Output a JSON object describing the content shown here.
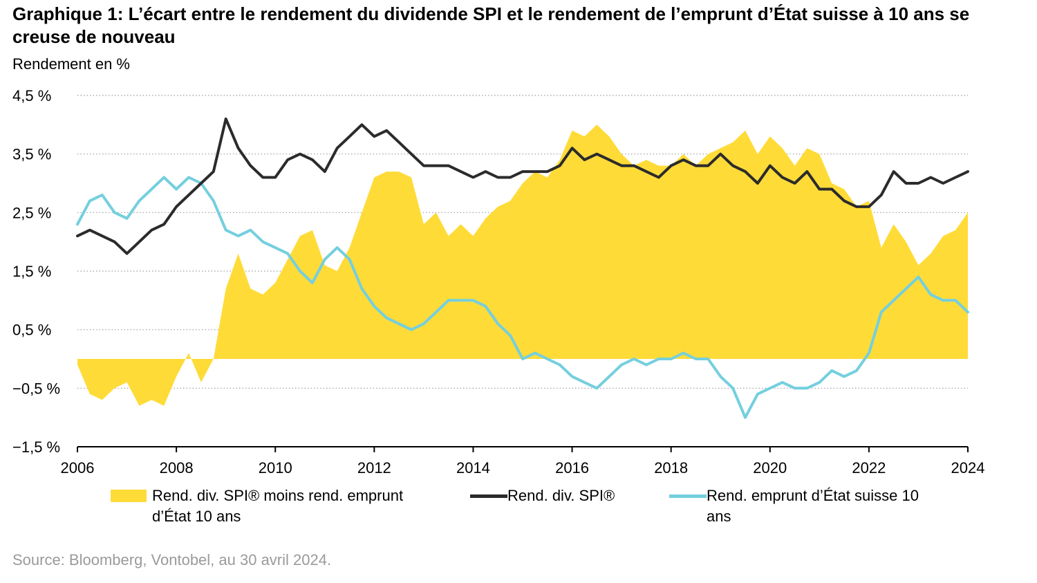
{
  "title": "Graphique 1: L’écart entre le rendement du dividende SPI et le rendement de l’emprunt d’État suisse à 10 ans se creuse de nouveau",
  "source": "Source: Bloomberg, Vontobel, au 30 avril 2024.",
  "colors": {
    "spread": "#FFDB38",
    "spi": "#2B2B2B",
    "bond": "#74CFDE"
  },
  "chart_data": {
    "type": "line",
    "title": "Graphique 1: L’écart entre le rendement du dividende SPI et le rendement de l’emprunt d’État suisse à 10 ans se creuse de nouveau",
    "ylabel": "Rendement en %",
    "xlabel": "",
    "ylim": [
      -1.5,
      4.5
    ],
    "xlim": [
      2006,
      2024
    ],
    "grid": "horizontal dotted",
    "legend_position": "bottom",
    "y_ticks": [
      {
        "value": 4.5,
        "label": "4,5 %"
      },
      {
        "value": 3.5,
        "label": "3,5 %"
      },
      {
        "value": 2.5,
        "label": "2,5 %"
      },
      {
        "value": 1.5,
        "label": "1,5 %"
      },
      {
        "value": 0.5,
        "label": "0,5 %"
      },
      {
        "value": -0.5,
        "label": "−0,5 %"
      },
      {
        "value": -1.5,
        "label": "−1,5 %"
      }
    ],
    "x_ticks": [
      "2006",
      "2008",
      "2010",
      "2012",
      "2014",
      "2016",
      "2018",
      "2020",
      "2022",
      "2024"
    ],
    "series": [
      {
        "name": "Rend. div. SPI® moins rend. emprunt d’État 10 ans",
        "kind": "area",
        "points": [
          [
            2006.0,
            -0.1
          ],
          [
            2006.25,
            -0.6
          ],
          [
            2006.5,
            -0.7
          ],
          [
            2006.75,
            -0.5
          ],
          [
            2007.0,
            -0.4
          ],
          [
            2007.25,
            -0.8
          ],
          [
            2007.5,
            -0.7
          ],
          [
            2007.75,
            -0.8
          ],
          [
            2008.0,
            -0.3
          ],
          [
            2008.25,
            0.1
          ],
          [
            2008.5,
            -0.4
          ],
          [
            2008.75,
            0.0
          ],
          [
            2009.0,
            1.2
          ],
          [
            2009.25,
            1.8
          ],
          [
            2009.5,
            1.2
          ],
          [
            2009.75,
            1.1
          ],
          [
            2010.0,
            1.3
          ],
          [
            2010.25,
            1.7
          ],
          [
            2010.5,
            2.1
          ],
          [
            2010.75,
            2.2
          ],
          [
            2011.0,
            1.6
          ],
          [
            2011.25,
            1.5
          ],
          [
            2011.5,
            1.9
          ],
          [
            2011.75,
            2.5
          ],
          [
            2012.0,
            3.1
          ],
          [
            2012.25,
            3.2
          ],
          [
            2012.5,
            3.2
          ],
          [
            2012.75,
            3.1
          ],
          [
            2013.0,
            2.3
          ],
          [
            2013.25,
            2.5
          ],
          [
            2013.5,
            2.1
          ],
          [
            2013.75,
            2.3
          ],
          [
            2014.0,
            2.1
          ],
          [
            2014.25,
            2.4
          ],
          [
            2014.5,
            2.6
          ],
          [
            2014.75,
            2.7
          ],
          [
            2015.0,
            3.0
          ],
          [
            2015.25,
            3.2
          ],
          [
            2015.5,
            3.1
          ],
          [
            2015.75,
            3.4
          ],
          [
            2016.0,
            3.9
          ],
          [
            2016.25,
            3.8
          ],
          [
            2016.5,
            4.0
          ],
          [
            2016.75,
            3.8
          ],
          [
            2017.0,
            3.5
          ],
          [
            2017.25,
            3.3
          ],
          [
            2017.5,
            3.4
          ],
          [
            2017.75,
            3.3
          ],
          [
            2018.0,
            3.3
          ],
          [
            2018.25,
            3.5
          ],
          [
            2018.5,
            3.3
          ],
          [
            2018.75,
            3.5
          ],
          [
            2019.0,
            3.6
          ],
          [
            2019.25,
            3.7
          ],
          [
            2019.5,
            3.9
          ],
          [
            2019.75,
            3.5
          ],
          [
            2020.0,
            3.8
          ],
          [
            2020.25,
            3.6
          ],
          [
            2020.5,
            3.3
          ],
          [
            2020.75,
            3.6
          ],
          [
            2021.0,
            3.5
          ],
          [
            2021.25,
            3.0
          ],
          [
            2021.5,
            2.9
          ],
          [
            2021.75,
            2.6
          ],
          [
            2022.0,
            2.7
          ],
          [
            2022.25,
            1.9
          ],
          [
            2022.5,
            2.3
          ],
          [
            2022.75,
            2.0
          ],
          [
            2023.0,
            1.6
          ],
          [
            2023.25,
            1.8
          ],
          [
            2023.5,
            2.1
          ],
          [
            2023.75,
            2.2
          ],
          [
            2024.0,
            2.5
          ]
        ]
      },
      {
        "name": "Rend. div. SPI®",
        "kind": "line",
        "points": [
          [
            2006.0,
            2.1
          ],
          [
            2006.25,
            2.2
          ],
          [
            2006.5,
            2.1
          ],
          [
            2006.75,
            2.0
          ],
          [
            2007.0,
            1.8
          ],
          [
            2007.25,
            2.0
          ],
          [
            2007.5,
            2.2
          ],
          [
            2007.75,
            2.3
          ],
          [
            2008.0,
            2.6
          ],
          [
            2008.25,
            2.8
          ],
          [
            2008.5,
            3.0
          ],
          [
            2008.75,
            3.2
          ],
          [
            2009.0,
            4.1
          ],
          [
            2009.25,
            3.6
          ],
          [
            2009.5,
            3.3
          ],
          [
            2009.75,
            3.1
          ],
          [
            2010.0,
            3.1
          ],
          [
            2010.25,
            3.4
          ],
          [
            2010.5,
            3.5
          ],
          [
            2010.75,
            3.4
          ],
          [
            2011.0,
            3.2
          ],
          [
            2011.25,
            3.6
          ],
          [
            2011.5,
            3.8
          ],
          [
            2011.75,
            4.0
          ],
          [
            2012.0,
            3.8
          ],
          [
            2012.25,
            3.9
          ],
          [
            2012.5,
            3.7
          ],
          [
            2012.75,
            3.5
          ],
          [
            2013.0,
            3.3
          ],
          [
            2013.25,
            3.3
          ],
          [
            2013.5,
            3.3
          ],
          [
            2013.75,
            3.2
          ],
          [
            2014.0,
            3.1
          ],
          [
            2014.25,
            3.2
          ],
          [
            2014.5,
            3.1
          ],
          [
            2014.75,
            3.1
          ],
          [
            2015.0,
            3.2
          ],
          [
            2015.25,
            3.2
          ],
          [
            2015.5,
            3.2
          ],
          [
            2015.75,
            3.3
          ],
          [
            2016.0,
            3.6
          ],
          [
            2016.25,
            3.4
          ],
          [
            2016.5,
            3.5
          ],
          [
            2016.75,
            3.4
          ],
          [
            2017.0,
            3.3
          ],
          [
            2017.25,
            3.3
          ],
          [
            2017.5,
            3.2
          ],
          [
            2017.75,
            3.1
          ],
          [
            2018.0,
            3.3
          ],
          [
            2018.25,
            3.4
          ],
          [
            2018.5,
            3.3
          ],
          [
            2018.75,
            3.3
          ],
          [
            2019.0,
            3.5
          ],
          [
            2019.25,
            3.3
          ],
          [
            2019.5,
            3.2
          ],
          [
            2019.75,
            3.0
          ],
          [
            2020.0,
            3.3
          ],
          [
            2020.25,
            3.1
          ],
          [
            2020.5,
            3.0
          ],
          [
            2020.75,
            3.2
          ],
          [
            2021.0,
            2.9
          ],
          [
            2021.25,
            2.9
          ],
          [
            2021.5,
            2.7
          ],
          [
            2021.75,
            2.6
          ],
          [
            2022.0,
            2.6
          ],
          [
            2022.25,
            2.8
          ],
          [
            2022.5,
            3.2
          ],
          [
            2022.75,
            3.0
          ],
          [
            2023.0,
            3.0
          ],
          [
            2023.25,
            3.1
          ],
          [
            2023.5,
            3.0
          ],
          [
            2023.75,
            3.1
          ],
          [
            2024.0,
            3.2
          ]
        ]
      },
      {
        "name": "Rend. emprunt d’État suisse 10 ans",
        "kind": "line",
        "points": [
          [
            2006.0,
            2.3
          ],
          [
            2006.25,
            2.7
          ],
          [
            2006.5,
            2.8
          ],
          [
            2006.75,
            2.5
          ],
          [
            2007.0,
            2.4
          ],
          [
            2007.25,
            2.7
          ],
          [
            2007.5,
            2.9
          ],
          [
            2007.75,
            3.1
          ],
          [
            2008.0,
            2.9
          ],
          [
            2008.25,
            3.1
          ],
          [
            2008.5,
            3.0
          ],
          [
            2008.75,
            2.7
          ],
          [
            2009.0,
            2.2
          ],
          [
            2009.25,
            2.1
          ],
          [
            2009.5,
            2.2
          ],
          [
            2009.75,
            2.0
          ],
          [
            2010.0,
            1.9
          ],
          [
            2010.25,
            1.8
          ],
          [
            2010.5,
            1.5
          ],
          [
            2010.75,
            1.3
          ],
          [
            2011.0,
            1.7
          ],
          [
            2011.25,
            1.9
          ],
          [
            2011.5,
            1.7
          ],
          [
            2011.75,
            1.2
          ],
          [
            2012.0,
            0.9
          ],
          [
            2012.25,
            0.7
          ],
          [
            2012.5,
            0.6
          ],
          [
            2012.75,
            0.5
          ],
          [
            2013.0,
            0.6
          ],
          [
            2013.25,
            0.8
          ],
          [
            2013.5,
            1.0
          ],
          [
            2013.75,
            1.0
          ],
          [
            2014.0,
            1.0
          ],
          [
            2014.25,
            0.9
          ],
          [
            2014.5,
            0.6
          ],
          [
            2014.75,
            0.4
          ],
          [
            2015.0,
            0.0
          ],
          [
            2015.25,
            0.1
          ],
          [
            2015.5,
            0.0
          ],
          [
            2015.75,
            -0.1
          ],
          [
            2016.0,
            -0.3
          ],
          [
            2016.25,
            -0.4
          ],
          [
            2016.5,
            -0.5
          ],
          [
            2016.75,
            -0.3
          ],
          [
            2017.0,
            -0.1
          ],
          [
            2017.25,
            0.0
          ],
          [
            2017.5,
            -0.1
          ],
          [
            2017.75,
            0.0
          ],
          [
            2018.0,
            0.0
          ],
          [
            2018.25,
            0.1
          ],
          [
            2018.5,
            0.0
          ],
          [
            2018.75,
            0.0
          ],
          [
            2019.0,
            -0.3
          ],
          [
            2019.25,
            -0.5
          ],
          [
            2019.5,
            -1.0
          ],
          [
            2019.75,
            -0.6
          ],
          [
            2020.0,
            -0.5
          ],
          [
            2020.25,
            -0.4
          ],
          [
            2020.5,
            -0.5
          ],
          [
            2020.75,
            -0.5
          ],
          [
            2021.0,
            -0.4
          ],
          [
            2021.25,
            -0.2
          ],
          [
            2021.5,
            -0.3
          ],
          [
            2021.75,
            -0.2
          ],
          [
            2022.0,
            0.1
          ],
          [
            2022.25,
            0.8
          ],
          [
            2022.5,
            1.0
          ],
          [
            2022.75,
            1.2
          ],
          [
            2023.0,
            1.4
          ],
          [
            2023.25,
            1.1
          ],
          [
            2023.5,
            1.0
          ],
          [
            2023.75,
            1.0
          ],
          [
            2024.0,
            0.8
          ]
        ]
      }
    ]
  },
  "legend": {
    "spread": "Rend. div. SPI® moins rend. emprunt d’État 10 ans",
    "spi": "Rend. div. SPI®",
    "bond": "Rend. emprunt d’État suisse 10 ans"
  }
}
